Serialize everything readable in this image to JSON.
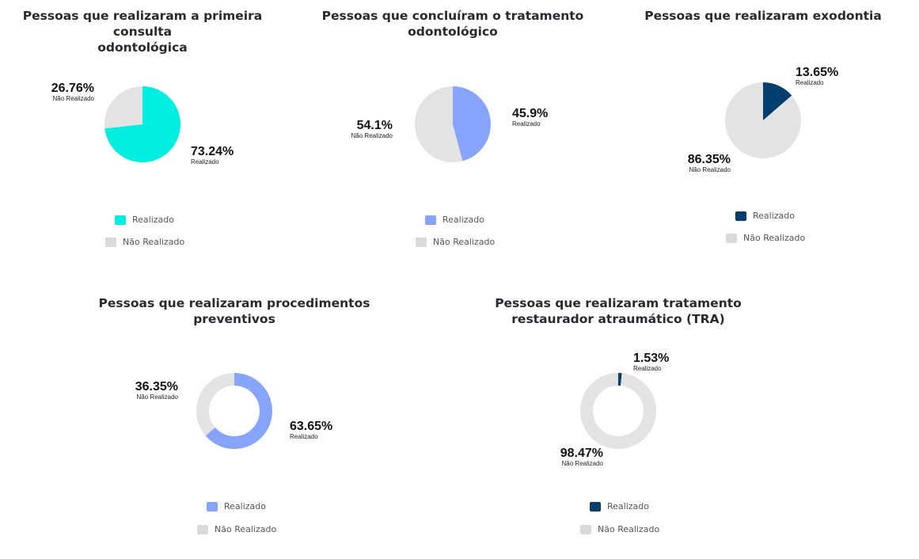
{
  "colors": {
    "nao_realizado": "#E3E3E3",
    "legend_nao_realizado": "#D9D9D9"
  },
  "chart_data": [
    {
      "type": "pie",
      "title": "Pessoas que realizaram a primeira consulta odontológica",
      "title_lines": [
        "Pessoas que realizaram a primeira consulta",
        "odontológica"
      ],
      "labels": [
        "Realizado",
        "Não Realizado"
      ],
      "values": [
        73.24,
        26.76
      ],
      "value_labels": [
        "73.24%",
        "26.76%"
      ],
      "colors": [
        "#00EFE0",
        "#E3E3E3"
      ],
      "donut": false,
      "legend": "bottom"
    },
    {
      "type": "pie",
      "title": "Pessoas que concluíram o tratamento odontológico",
      "title_lines": [
        "Pessoas que concluíram o tratamento",
        "odontológico"
      ],
      "labels": [
        "Realizado",
        "Não Realizado"
      ],
      "values": [
        45.9,
        54.1
      ],
      "value_labels": [
        "45.9%",
        "54.1%"
      ],
      "colors": [
        "#86A4FB",
        "#E3E3E3"
      ],
      "donut": false,
      "legend": "bottom"
    },
    {
      "type": "pie",
      "title": "Pessoas que realizaram exodontia",
      "title_lines": [
        "Pessoas que realizaram exodontia"
      ],
      "labels": [
        "Realizado",
        "Não Realizado"
      ],
      "values": [
        13.65,
        86.35
      ],
      "value_labels": [
        "13.65%",
        "86.35%"
      ],
      "colors": [
        "#023E6E",
        "#E3E3E3"
      ],
      "donut": false,
      "legend": "bottom"
    },
    {
      "type": "pie",
      "title": "Pessoas que realizaram procedimentos preventivos",
      "title_lines": [
        "Pessoas que realizaram procedimentos",
        "preventivos"
      ],
      "labels": [
        "Realizado",
        "Não Realizado"
      ],
      "values": [
        63.65,
        36.35
      ],
      "value_labels": [
        "63.65%",
        "36.35%"
      ],
      "colors": [
        "#86A4FB",
        "#E3E3E3"
      ],
      "donut": true,
      "legend": "bottom"
    },
    {
      "type": "pie",
      "title": "Pessoas que realizaram tratamento restaurador atraumático (TRA)",
      "title_lines": [
        "Pessoas que realizaram tratamento",
        "restaurador atraumático (TRA)"
      ],
      "labels": [
        "Realizado",
        "Não Realizado"
      ],
      "values": [
        1.53,
        98.47
      ],
      "value_labels": [
        "1.53%",
        "98.47%"
      ],
      "colors": [
        "#023E6E",
        "#E3E3E3"
      ],
      "donut": true,
      "legend": "bottom"
    }
  ]
}
